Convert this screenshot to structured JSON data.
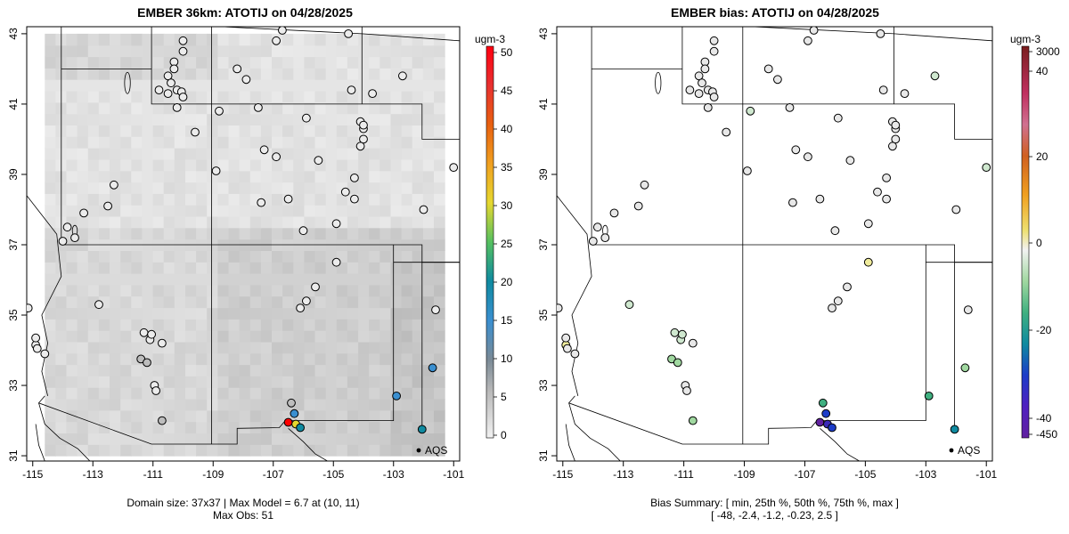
{
  "left": {
    "title": "EMBER 36km: ATOTIJ on 04/28/2025",
    "footer_line1": "Domain size: 37x37 | Max Model = 6.7 at (10, 11)",
    "footer_line2": "Max Obs: 51",
    "legend": {
      "unit": "ugm-3",
      "ticks": [
        "0",
        "5",
        "10",
        "15",
        "20",
        "25",
        "30",
        "35",
        "40",
        "45",
        "50"
      ]
    },
    "x_ticks": [
      "-115",
      "-113",
      "-111",
      "-109",
      "-107",
      "-105",
      "-103",
      "-101"
    ],
    "y_ticks": [
      "31",
      "33",
      "35",
      "37",
      "39",
      "41",
      "43"
    ],
    "aqs_label": "AQS"
  },
  "right": {
    "title": "EMBER bias: ATOTIJ on 04/28/2025",
    "footer_line1": "Bias Summary: [ min, 25th %, 50th %, 75th %, max ]",
    "footer_line2": "[ -48,   -2.4,   -1.2,   -0.23,   2.5 ]",
    "legend": {
      "unit": "ugm-3",
      "ticks": [
        "3000",
        "40",
        "20",
        "0",
        "-20",
        "-40",
        "-450"
      ]
    },
    "x_ticks": [
      "-115",
      "-113",
      "-111",
      "-109",
      "-107",
      "-105",
      "-103",
      "-101"
    ],
    "y_ticks": [
      "31",
      "33",
      "35",
      "37",
      "39",
      "41",
      "43"
    ],
    "aqs_label": "AQS"
  },
  "colors": {
    "conc_scale": [
      "#e0e0e0",
      "#7a7a7a",
      "#3a8fd0",
      "#0f8aa0",
      "#14a07a",
      "#55c060",
      "#e6d830",
      "#f0a020",
      "#e86010",
      "#e82828",
      "#ff0000"
    ],
    "bias_scale_top_to_bottom": [
      "#7a1e1e",
      "#c03060",
      "#d07090",
      "#d06020",
      "#f0a020",
      "#eee070",
      "#f2f2f2",
      "#a0d8a0",
      "#40b080",
      "#0f8aa0",
      "#1c3cc8",
      "#5020c0",
      "#6020a0"
    ]
  }
}
